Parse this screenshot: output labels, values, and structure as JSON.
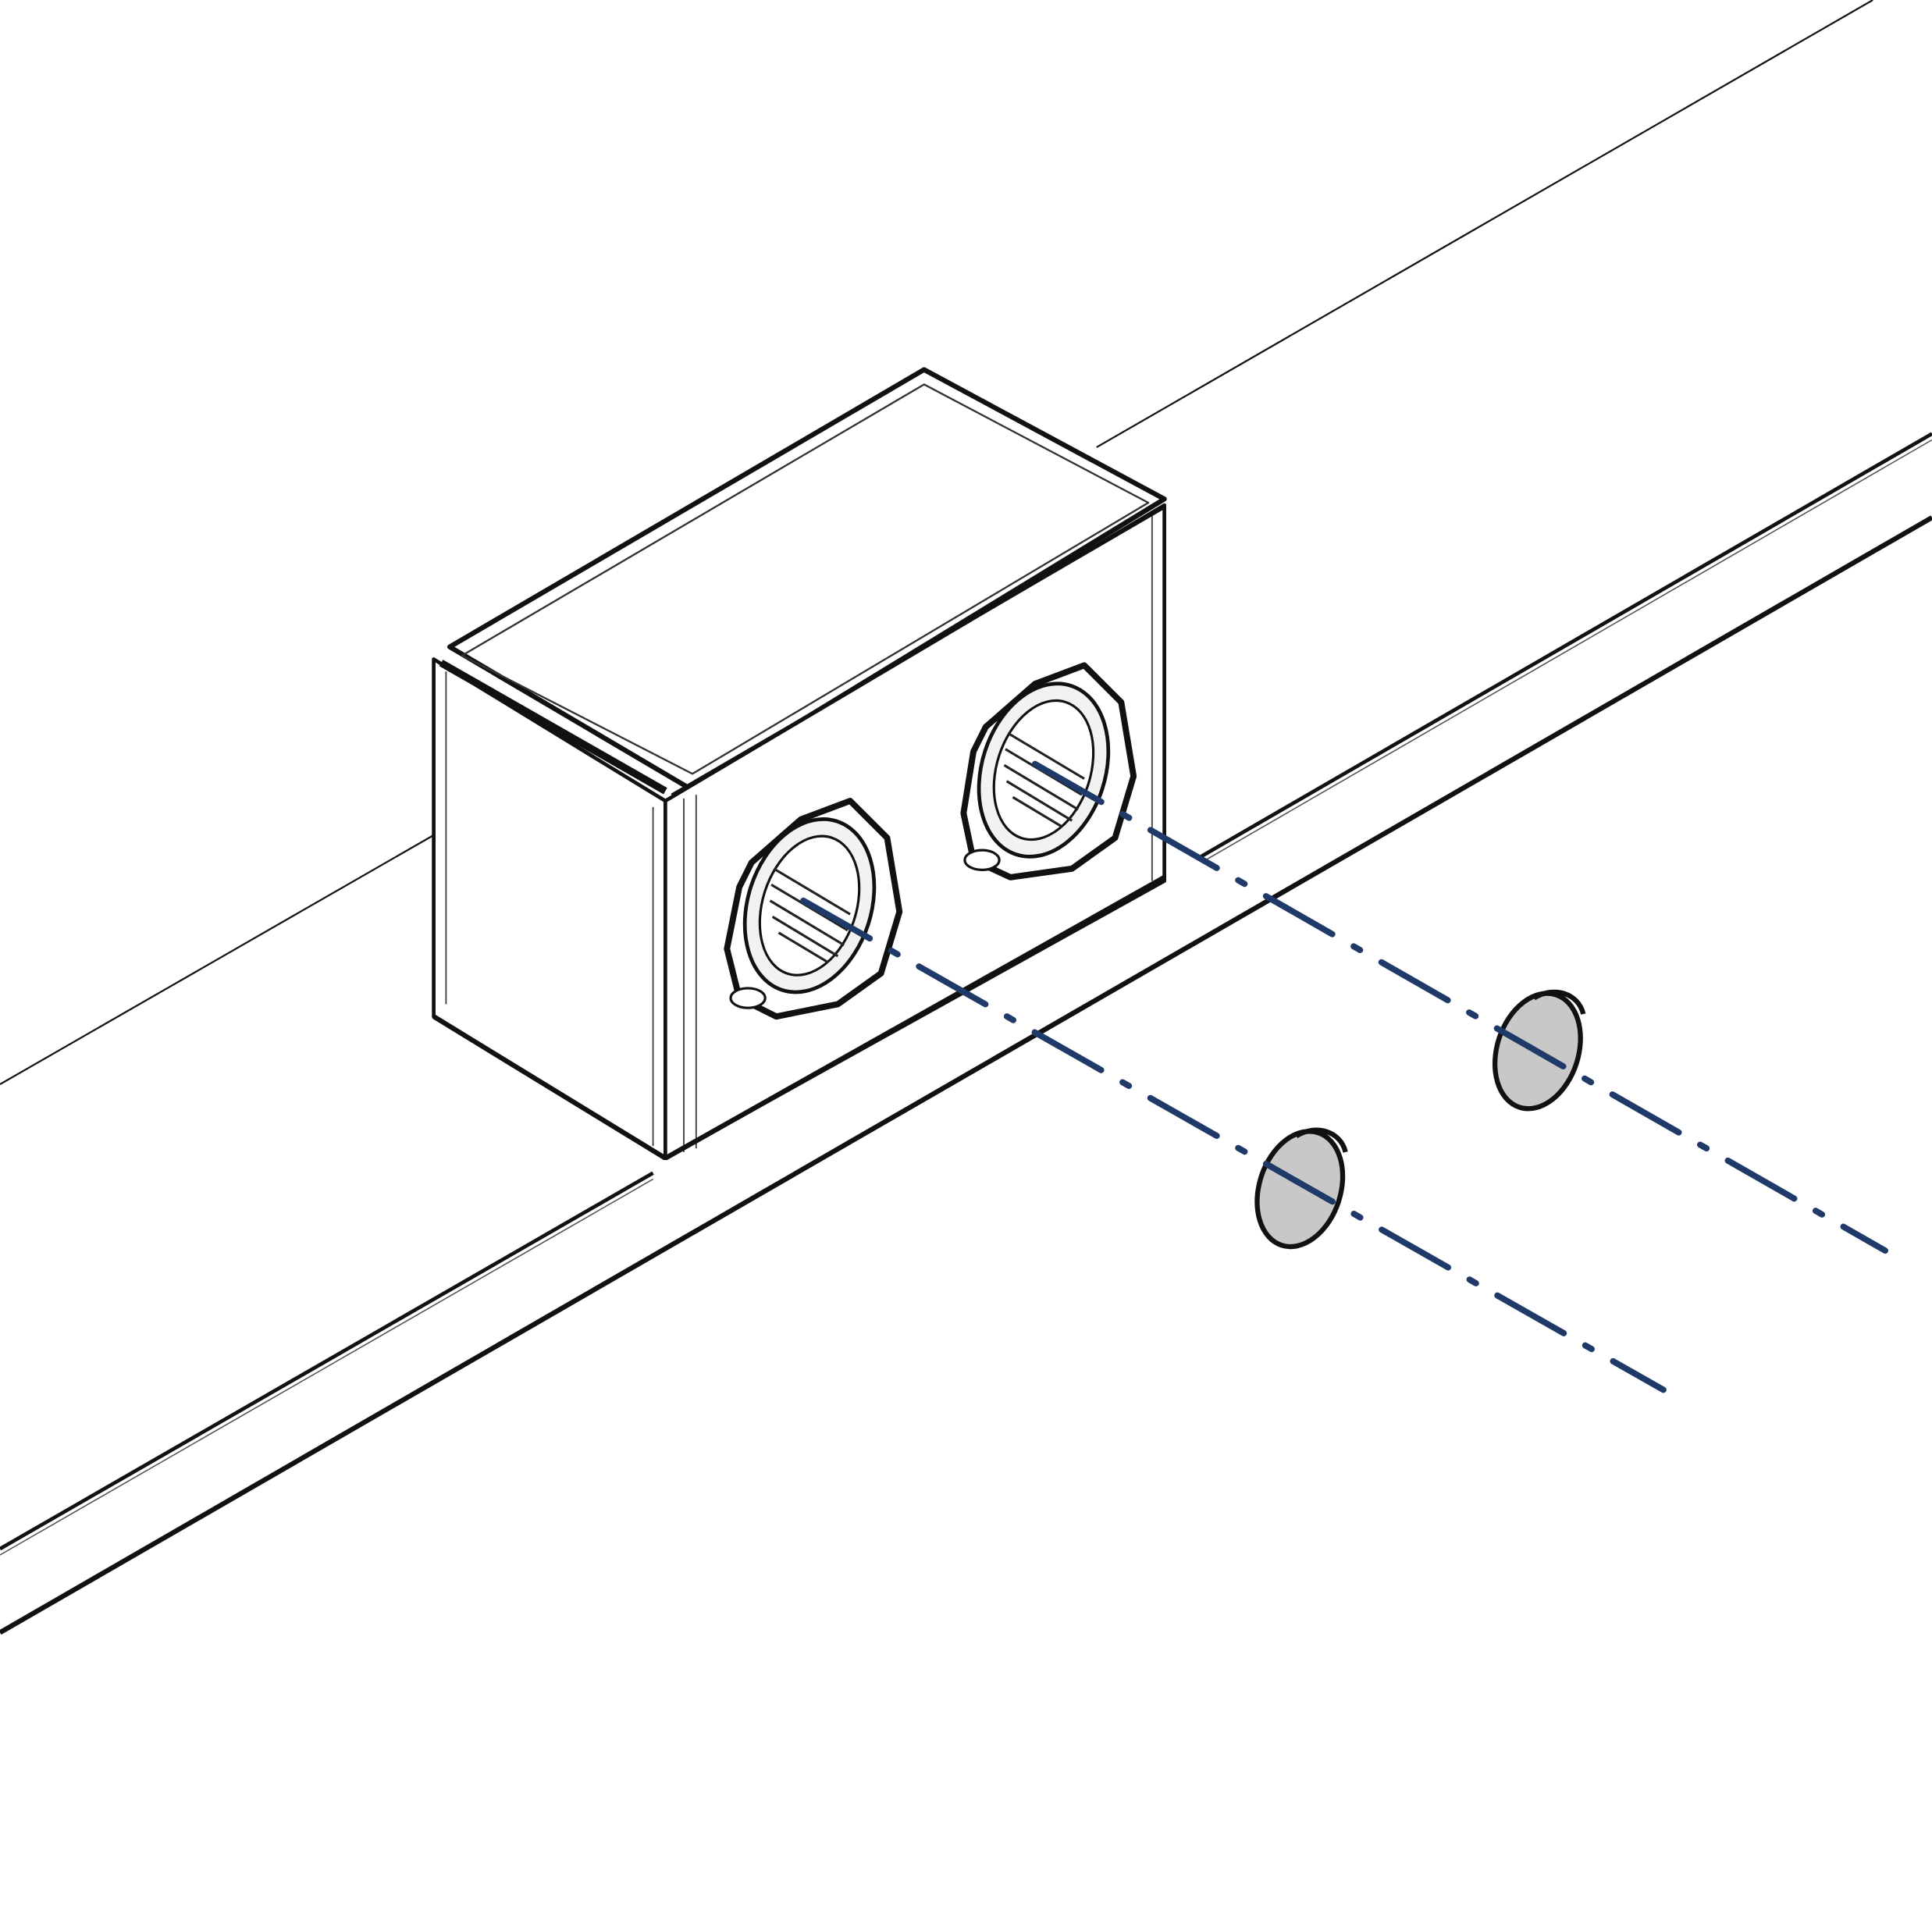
{
  "diagram": {
    "kind": "isometric-line-drawing",
    "colors": {
      "background": "#ffffff",
      "line": "#111111",
      "axis": "#1f3a68",
      "face_fill": "#ffffff",
      "button_fill": "#c8c8c8"
    },
    "parts": {
      "housing": "enclosure-box",
      "openings": 2,
      "components": 2
    },
    "axis_line_style": "dash-dot"
  }
}
